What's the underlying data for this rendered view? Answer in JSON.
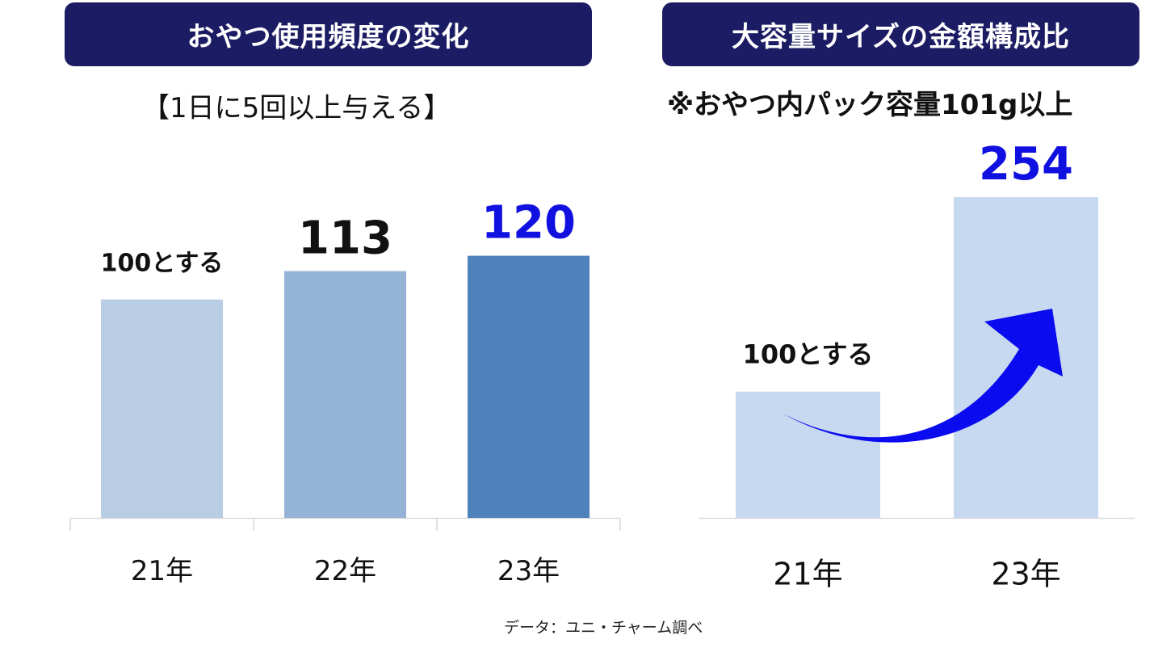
{
  "left_panel": {
    "header": "おやつ使用頻度の変化",
    "subtitle": "【1日に5回以上与える】"
  },
  "right_panel": {
    "header": "大容量サイズの金額構成比",
    "subtitle": "※おやつ内パック容量101g以上"
  },
  "footnote": "データ：ユニ・チャーム調べ",
  "colors": {
    "header_bg": "#1c1c64",
    "highlight_text": "#1010e0",
    "arrow": "#0b0bf0"
  },
  "chart_data": [
    {
      "type": "bar",
      "title": "おやつ使用頻度の変化",
      "subtitle": "【1日に5回以上与える】",
      "categories": [
        "21年",
        "22年",
        "23年"
      ],
      "values": [
        100,
        113,
        120
      ],
      "data_labels": [
        "100とする",
        "113",
        "120"
      ],
      "bar_colors": [
        "#b9cde5",
        "#95b3d7",
        "#4f81bd"
      ],
      "label_colors": [
        "#111111",
        "#111111",
        "#1010e0"
      ],
      "ylim": [
        0,
        135
      ],
      "xlabel": "",
      "ylabel": "",
      "grid": false
    },
    {
      "type": "bar",
      "title": "大容量サイズの金額構成比",
      "subtitle": "※おやつ内パック容量101g以上",
      "categories": [
        "21年",
        "23年"
      ],
      "values": [
        100,
        254
      ],
      "data_labels": [
        "100とする",
        "254"
      ],
      "bar_colors": [
        "#c6d9f1",
        "#c6d9f1"
      ],
      "label_colors": [
        "#111111",
        "#1010e0"
      ],
      "ylim": [
        0,
        254
      ],
      "xlabel": "",
      "ylabel": "",
      "grid": false,
      "annotation": "upward-arrow"
    }
  ]
}
